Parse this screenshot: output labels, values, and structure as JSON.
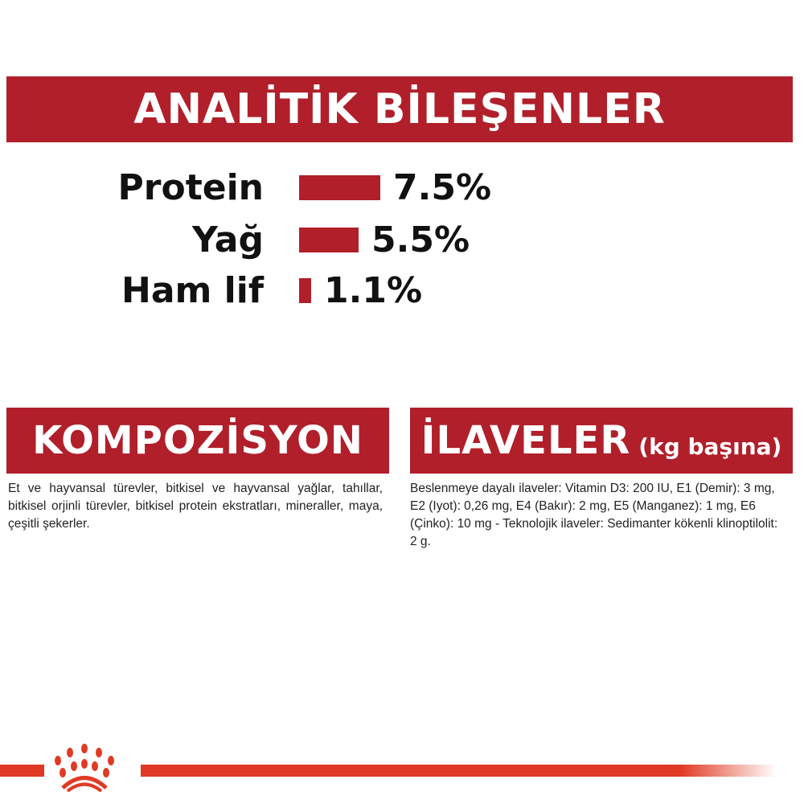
{
  "analytic": {
    "title": "ANALİTİK BİLEŞENLER",
    "items": [
      {
        "label": "Protein",
        "value": "7.5%",
        "percent": 7.5
      },
      {
        "label": "Yağ",
        "value": "5.5%",
        "percent": 5.5
      },
      {
        "label": "Ham lif",
        "value": "1.1%",
        "percent": 1.1
      }
    ],
    "bar_color": "#b01f2a"
  },
  "composition": {
    "title": "KOMPOZİSYON",
    "text": "Et ve hayvansal türevler, bitkisel ve hayvansal yağlar, tahıllar, bitkisel orjinli türevler, bitkisel protein ekstratları, mineraller, maya, çeşitli şekerler."
  },
  "additives": {
    "title": "İLAVELER",
    "subtitle": "(kg başına)",
    "text": "Beslenmeye dayalı ilaveler: Vitamin D3: 200 IU, E1 (Demir): 3 mg, E2 (Iyot): 0,26 mg, E4 (Bakır): 2 mg, E5 (Manganez): 1 mg, E6 (Çinko): 10 mg - Teknolojik ilaveler: Sedimanter kökenli klinoptilolit: 2 g."
  },
  "footer": {
    "logo_icon": "crown-paw-logo-icon",
    "accent": "#e03a24"
  }
}
